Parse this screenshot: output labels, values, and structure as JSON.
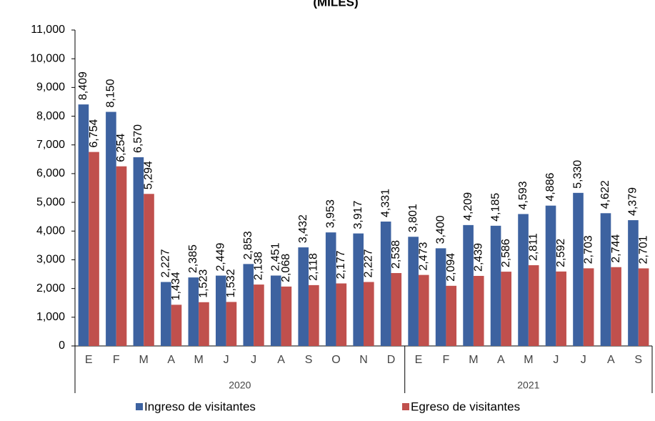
{
  "chart_data": {
    "type": "bar",
    "title": "(MILES)",
    "groups": [
      {
        "label": "2020",
        "categories": [
          "E",
          "F",
          "M",
          "A",
          "M",
          "J",
          "J",
          "A",
          "S",
          "O",
          "N",
          "D"
        ]
      },
      {
        "label": "2021",
        "categories": [
          "E",
          "F",
          "M",
          "A",
          "M",
          "J",
          "J",
          "A",
          "S"
        ]
      }
    ],
    "series": [
      {
        "name": "Ingreso de visitantes",
        "color": "#3d62a0",
        "values": [
          8409,
          8150,
          6570,
          2227,
          2385,
          2449,
          2853,
          2451,
          3432,
          3953,
          3917,
          4331,
          3801,
          3400,
          4209,
          4185,
          4593,
          4886,
          5330,
          4622,
          4379
        ],
        "value_labels": [
          "8,409",
          "8,150",
          "6,570",
          "2,227",
          "2,385",
          "2,449",
          "2,853",
          "2,451",
          "3,432",
          "3,953",
          "3,917",
          "4,331",
          "3,801",
          "3,400",
          "4,209",
          "4,185",
          "4,593",
          "4,886",
          "5,330",
          "4,622",
          "4,379"
        ]
      },
      {
        "name": "Egreso de visitantes",
        "color": "#c0504d",
        "values": [
          6754,
          6254,
          5294,
          1434,
          1523,
          1532,
          2138,
          2068,
          2118,
          2177,
          2227,
          2538,
          2473,
          2094,
          2439,
          2586,
          2811,
          2592,
          2703,
          2744,
          2701
        ],
        "value_labels": [
          "6,754",
          "6,254",
          "5,294",
          "1,434",
          "1,523",
          "1,532",
          "2,138",
          "2,068",
          "2,118",
          "2,177",
          "2,227",
          "2,538",
          "2,473",
          "2,094",
          "2,439",
          "2,586",
          "2,811",
          "2,592",
          "2,703",
          "2,744",
          "2,701"
        ]
      }
    ],
    "ylim": [
      0,
      11000
    ],
    "yticks": [
      0,
      {
        "value": 1000,
        "label": "1,000"
      },
      {
        "value": 2000,
        "label": "2,000"
      },
      {
        "value": 3000,
        "label": "3,000"
      },
      {
        "value": 4000,
        "label": "4,000"
      },
      {
        "value": 5000,
        "label": "5,000"
      },
      {
        "value": 6000,
        "label": "6,000"
      },
      {
        "value": 7000,
        "label": "7,000"
      },
      {
        "value": 8000,
        "label": "8,000"
      },
      {
        "value": 9000,
        "label": "9,000"
      },
      {
        "value": 10000,
        "label": "10,000"
      },
      {
        "value": 11000,
        "label": "11,000"
      }
    ],
    "legend": "bottom"
  }
}
